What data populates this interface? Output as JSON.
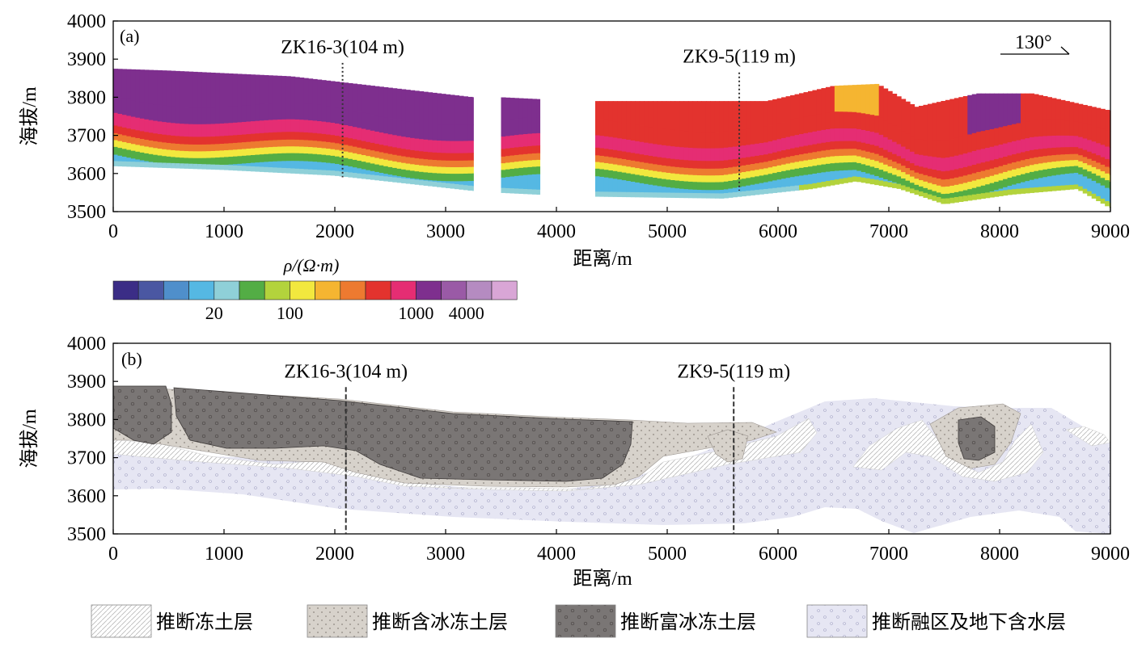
{
  "chart_data": [
    {
      "type": "heatmap",
      "panel": "(a)",
      "xlabel": "距离/m",
      "ylabel": "海拔/m",
      "xlim": [
        0,
        9000
      ],
      "ylim": [
        3500,
        4000
      ],
      "x_ticks": [
        0,
        1000,
        2000,
        3000,
        4000,
        5000,
        6000,
        7000,
        8000,
        9000
      ],
      "y_ticks": [
        3500,
        3600,
        3700,
        3800,
        3900,
        4000
      ],
      "direction_label": "130°",
      "boreholes": [
        {
          "label": "ZK16-3(104 m)",
          "x": 2070,
          "top": 3890,
          "bottom": 3590
        },
        {
          "label": "ZK9-5(119 m)",
          "x": 5650,
          "top": 3865,
          "bottom": 3555
        }
      ],
      "colorbar": {
        "title": "ρ/(Ω·m)",
        "colors": [
          "#3b2d86",
          "#4a57a2",
          "#4f8fcb",
          "#55b8e3",
          "#8fd0d8",
          "#53ad45",
          "#b3d33c",
          "#f2e83e",
          "#f5b531",
          "#ed7a30",
          "#e3332e",
          "#e52d73",
          "#7e2f8e",
          "#9a5aa6",
          "#b58bc1",
          "#d9a6d6"
        ],
        "tick_labels": [
          {
            "label": "20",
            "after_index": 3
          },
          {
            "label": "100",
            "after_index": 6
          },
          {
            "label": "1000",
            "after_index": 11
          },
          {
            "label": "4000",
            "after_index": 13
          }
        ]
      },
      "segments": [
        {
          "x_range": [
            0,
            3250
          ],
          "surface": [
            [
              0,
              3875
            ],
            [
              500,
              3870
            ],
            [
              1600,
              3855
            ],
            [
              3250,
              3800
            ]
          ],
          "base": [
            [
              0,
              3620
            ],
            [
              1000,
              3610
            ],
            [
              2000,
              3595
            ],
            [
              3250,
              3555
            ]
          ]
        },
        {
          "x_range": [
            3500,
            3850
          ],
          "surface": [
            [
              3500,
              3800
            ],
            [
              3850,
              3795
            ]
          ],
          "base": [
            [
              3500,
              3550
            ],
            [
              3850,
              3545
            ]
          ]
        },
        {
          "x_range": [
            4350,
            9000
          ],
          "surface": [
            [
              4350,
              3790
            ],
            [
              5900,
              3790
            ],
            [
              6500,
              3830
            ],
            [
              6900,
              3835
            ],
            [
              7250,
              3775
            ],
            [
              7800,
              3810
            ],
            [
              8300,
              3810
            ],
            [
              9000,
              3765
            ]
          ],
          "base": [
            [
              4350,
              3540
            ],
            [
              5500,
              3535
            ],
            [
              6300,
              3560
            ],
            [
              6700,
              3580
            ],
            [
              7100,
              3560
            ],
            [
              7500,
              3520
            ],
            [
              8100,
              3545
            ],
            [
              8700,
              3560
            ],
            [
              9000,
              3510
            ]
          ]
        }
      ]
    },
    {
      "type": "area",
      "panel": "(b)",
      "xlabel": "距离/m",
      "ylabel": "海拔/m",
      "xlim": [
        0,
        9000
      ],
      "ylim": [
        3500,
        4000
      ],
      "x_ticks": [
        0,
        1000,
        2000,
        3000,
        4000,
        5000,
        6000,
        7000,
        8000,
        9000
      ],
      "y_ticks": [
        3500,
        3600,
        3700,
        3800,
        3900,
        4000
      ],
      "boreholes": [
        {
          "label": "ZK16-3(104 m)",
          "x": 2100,
          "top": 3885,
          "bottom": 3500
        },
        {
          "label": "ZK9-5(119 m)",
          "x": 5600,
          "top": 3885,
          "bottom": 3500
        }
      ],
      "legend": [
        {
          "label": "推断冻土层",
          "fill": "#ffffff",
          "pattern": "hatch"
        },
        {
          "label": "推断含冰冻土层",
          "fill": "#d7d2cb",
          "pattern": "dots"
        },
        {
          "label": "推断富冰冻土层",
          "fill": "#7a7675",
          "pattern": "circles"
        },
        {
          "label": "推断融区及地下含水层",
          "fill": "#e6e6f3",
          "pattern": "dots"
        }
      ]
    }
  ]
}
